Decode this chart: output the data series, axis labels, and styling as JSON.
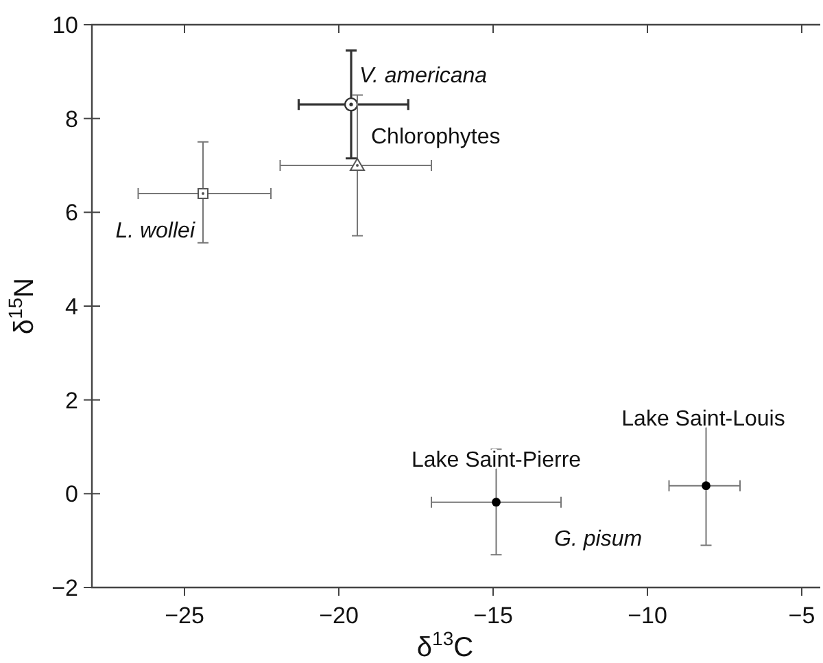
{
  "chart_data": {
    "type": "scatter",
    "xlabel": "δ$^{13}$C",
    "ylabel": "δ$^{15}$N",
    "xlim": [
      -28,
      -4.4
    ],
    "ylim": [
      -2,
      10
    ],
    "xticks": [
      -25,
      -20,
      -15,
      -10,
      -5
    ],
    "yticks": [
      -2,
      0,
      2,
      4,
      6,
      8,
      10
    ],
    "grid": false,
    "series": [
      {
        "name": "V. americana",
        "color": "#333333",
        "marker": "circle",
        "x": [
          -19.6
        ],
        "values": [
          8.3
        ],
        "errors": [
          [
            7.15,
            9.45
          ]
        ],
        "xerrors": [
          [
            -21.3,
            -17.75
          ]
        ]
      },
      {
        "name": "Chlorophytes",
        "color": "#555555",
        "marker": "triangle",
        "x": [
          -19.4
        ],
        "values": [
          7.0
        ],
        "errors": [
          [
            5.5,
            8.5
          ]
        ],
        "xerrors": [
          [
            -21.9,
            -17.0
          ]
        ]
      },
      {
        "name": "L. wollei",
        "color": "#555555",
        "marker": "square",
        "x": [
          -24.4
        ],
        "values": [
          6.4
        ],
        "errors": [
          [
            5.35,
            7.5
          ]
        ],
        "xerrors": [
          [
            -26.5,
            -22.2
          ]
        ]
      },
      {
        "name": "Lake Saint-Pierre",
        "color": "#000000",
        "marker": "circle",
        "x": [
          -14.9
        ],
        "values": [
          -0.18
        ],
        "errors": [
          [
            -1.3,
            0.95
          ]
        ],
        "xerrors": [
          [
            -17.0,
            -12.8
          ]
        ]
      },
      {
        "name": "Lake Saint-Louis",
        "color": "#000000",
        "marker": "circle",
        "x": [
          -8.1
        ],
        "values": [
          0.17
        ],
        "errors": [
          [
            -1.1,
            1.45
          ]
        ],
        "xerrors": [
          [
            -9.3,
            -7.0
          ]
        ]
      }
    ],
    "annotations": [
      "G. pisum"
    ]
  }
}
